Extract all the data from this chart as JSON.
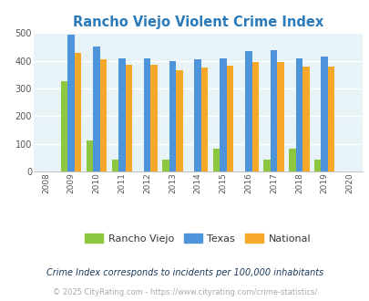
{
  "title": "Rancho Viejo Violent Crime Index",
  "title_color": "#2b7bba",
  "years": [
    2009,
    2010,
    2011,
    2012,
    2013,
    2014,
    2015,
    2016,
    2017,
    2018,
    2019
  ],
  "rancho_viejo": [
    325,
    112,
    43,
    0,
    43,
    0,
    82,
    0,
    43,
    82,
    43
  ],
  "texas": [
    493,
    452,
    408,
    408,
    400,
    405,
    410,
    435,
    438,
    410,
    415
  ],
  "national": [
    430,
    404,
    386,
    387,
    367,
    376,
    383,
    395,
    394,
    379,
    379
  ],
  "bar_colors": {
    "rancho_viejo": "#8dc63f",
    "texas": "#4d94db",
    "national": "#f5a82a"
  },
  "xlim": [
    2007.5,
    2020.5
  ],
  "ylim": [
    0,
    500
  ],
  "yticks": [
    0,
    100,
    200,
    300,
    400,
    500
  ],
  "xticks": [
    2008,
    2009,
    2010,
    2011,
    2012,
    2013,
    2014,
    2015,
    2016,
    2017,
    2018,
    2019,
    2020
  ],
  "background_color": "#e8f3f8",
  "grid_color": "#ffffff",
  "legend_labels": [
    "Rancho Viejo",
    "Texas",
    "National"
  ],
  "legend_text_color": "#333333",
  "footnote1": "Crime Index corresponds to incidents per 100,000 inhabitants",
  "footnote2": "© 2025 CityRating.com - https://www.cityrating.com/crime-statistics/",
  "footnote1_color": "#1a3a5c",
  "footnote2_color": "#aaaaaa",
  "bar_width": 0.27
}
